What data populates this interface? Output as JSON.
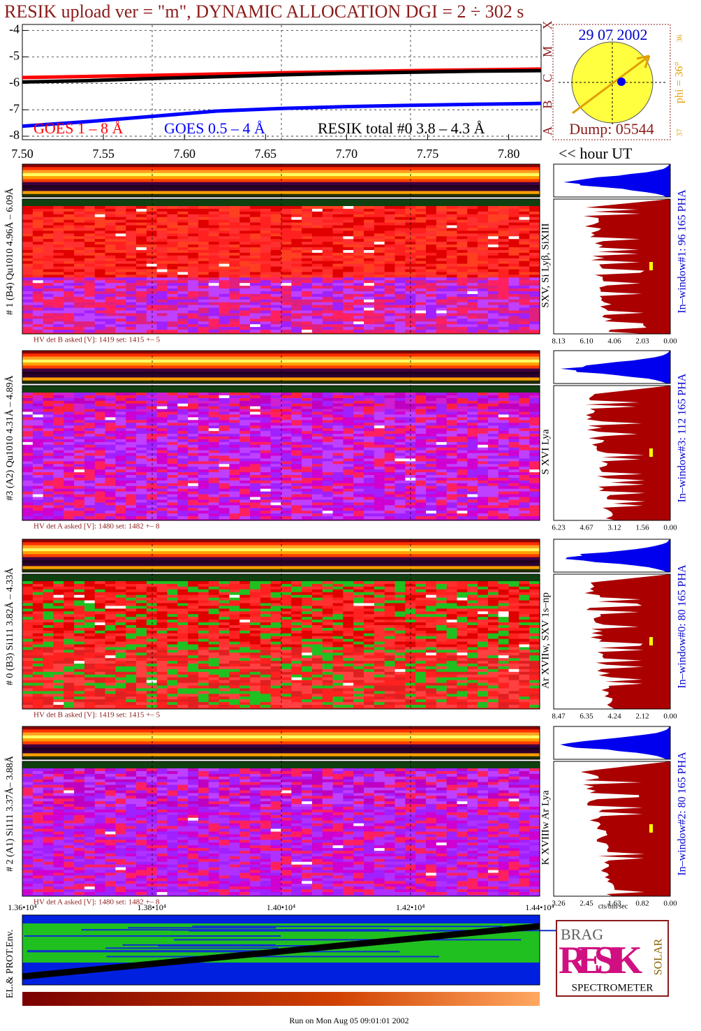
{
  "chart_data": {
    "type": "line",
    "title": "RESIK upload ver = \"m\", DYNAMIC ALLOCATION  DGI =   2 ÷ 302 s",
    "x": [
      7.5,
      7.54,
      7.58,
      7.62,
      7.66,
      7.7,
      7.74,
      7.78,
      7.82
    ],
    "series": [
      {
        "name": "GOES 1 – 8 Å",
        "color": "#ff0000",
        "values": [
          -5.78,
          -5.74,
          -5.7,
          -5.65,
          -5.6,
          -5.56,
          -5.52,
          -5.49,
          -5.46
        ]
      },
      {
        "name": "GOES 0.5 – 4 Å",
        "color": "#0000ff",
        "values": [
          -7.62,
          -7.45,
          -7.25,
          -7.05,
          -6.95,
          -6.88,
          -6.83,
          -6.79,
          -6.76
        ]
      },
      {
        "name": "RESIK total #0  3.8 – 4.3 Å",
        "color": "#000000",
        "values": [
          -5.95,
          -5.9,
          -5.82,
          -5.75,
          -5.68,
          -5.62,
          -5.58,
          -5.54,
          -5.52
        ]
      }
    ],
    "xlim": [
      7.5,
      7.82
    ],
    "xticks": [
      {
        "value": 7.5,
        "label": "7.50"
      },
      7.55,
      {
        "value": 7.6,
        "label": "7.60"
      },
      7.65,
      {
        "value": 7.7,
        "label": "7.70"
      },
      7.75,
      {
        "value": 7.8,
        "label": "7.80"
      }
    ],
    "ylim": [
      -8,
      -3.8
    ],
    "yticks": [
      -8,
      -7,
      -6,
      -5,
      -4
    ],
    "xlabel": "<< hour UT",
    "grid": true
  },
  "goes_classes": [
    "A",
    "B",
    "C",
    "M",
    "X"
  ],
  "sun": {
    "date": "29 07 2002",
    "phi": "phi = 36°",
    "scale_top": "36",
    "scale_bottom": "37",
    "dump": "Dump: 05544"
  },
  "panels": [
    {
      "label": "# 1 (B4) Qu1010 4.96Å – 6.09Å",
      "hv": "HV det B asked [V]:  1419 set:  1415 +–    5",
      "lines": "SXV, Si Lyβ, SiXIII",
      "window": "In–window#1:   96 165  PHA",
      "ticks": [
        "8.13",
        "6.10",
        "4.06",
        "2.03",
        "0.00"
      ]
    },
    {
      "label": "#3 (A2) Qu1010  4.31Å – 4.89Å",
      "hv": "HV det A asked [V]:  1480 set:  1482 +–    8",
      "lines": "S XVI Lya",
      "window": "In–window#3:  112 165  PHA",
      "ticks": [
        "6.23",
        "4.67",
        "3.12",
        "1.56",
        "0.00"
      ]
    },
    {
      "label": "# 0 (B3) Si111  3.82Å – 4.33Å",
      "hv": "HV det B asked [V]:  1419 set:  1415 +–    5",
      "lines": "Ar XVIIw, SXV 1s–np",
      "window": "In–window#0:   80 165  PHA",
      "ticks": [
        "8.47",
        "6.35",
        "4.24",
        "2.12",
        "0.00"
      ]
    },
    {
      "label": "# 2 (A1) Si111  3.37Å– 3.88Å",
      "hv": "HV det A asked [V]:  1480 set:  1482 +–    8",
      "lines": "K XVIIIw  Ar Lya",
      "window": "In–window#2:   80 165  PHA",
      "ticks": [
        "3.26",
        "2.45",
        "1.63",
        "0.82",
        "0.00"
      ]
    }
  ],
  "hist_unit": "cts/bin/sec",
  "time_axis": [
    "1.36•10⁴",
    "1.38•10⁴",
    "1.40•10⁴",
    "1.42•10⁴",
    "1.44•10⁴"
  ],
  "env_label": "EL.& PROT.Env.",
  "logo": {
    "brag": "BRAG",
    "resik": "RESIK",
    "solar": "SOLAR",
    "spectrometer": "SPECTROMETER"
  },
  "footer": "Run on Mon Aug 05 09:01:01 2002"
}
